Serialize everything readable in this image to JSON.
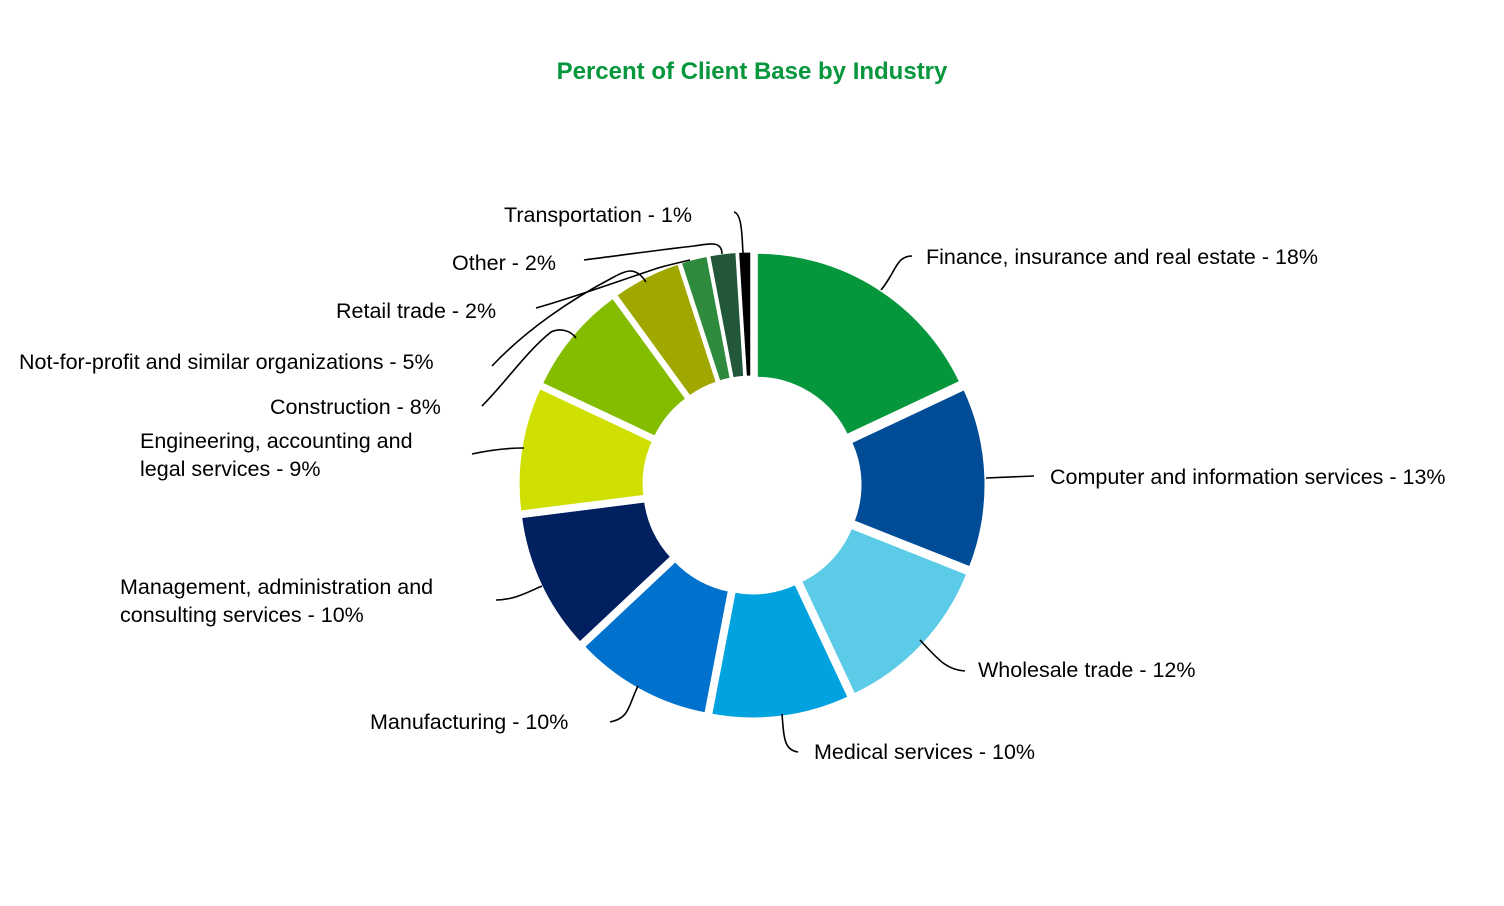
{
  "chart_data": {
    "type": "pie",
    "style": "donut-exploded",
    "title": "Percent of Client Base by Industry",
    "title_color": "#06963C",
    "slices": [
      {
        "label": "Finance, insurance and real estate - 18%",
        "name": "Finance, insurance and real estate",
        "value": 18,
        "color": "#06963C"
      },
      {
        "label": "Computer and information services - 13%",
        "name": "Computer and information services",
        "value": 13,
        "color": "#004C97"
      },
      {
        "label": "Wholesale trade - 12%",
        "name": "Wholesale trade",
        "value": 12,
        "color": "#5CCBE8"
      },
      {
        "label": "Medical services - 10%",
        "name": "Medical services",
        "value": 10,
        "color": "#00A2DF"
      },
      {
        "label": "Manufacturing - 10%",
        "name": "Manufacturing",
        "value": 10,
        "color": "#0072CE"
      },
      {
        "label": "Management, administration and consulting services - 10%",
        "name": "Management, administration and consulting services",
        "value": 10,
        "color": "#002060"
      },
      {
        "label": "Engineering, accounting and legal services - 9%",
        "name": "Engineering, accounting and legal services",
        "value": 9,
        "color": "#CFE000"
      },
      {
        "label": "Construction - 8%",
        "name": "Construction",
        "value": 8,
        "color": "#84BD00"
      },
      {
        "label": "Not-for-profit and similar organizations - 5%",
        "name": "Not-for-profit and similar organizations",
        "value": 5,
        "color": "#A0A800"
      },
      {
        "label": "Retail trade - 2%",
        "name": "Retail trade",
        "value": 2,
        "color": "#2E8B3E"
      },
      {
        "label": "Other - 2%",
        "name": "Other",
        "value": 2,
        "color": "#22573A"
      },
      {
        "label": "Transportation - 1%",
        "name": "Transportation",
        "value": 1,
        "color": "#000000"
      }
    ]
  }
}
